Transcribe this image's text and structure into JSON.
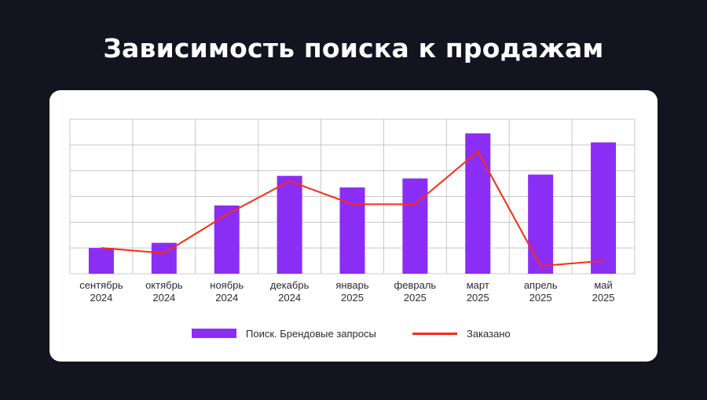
{
  "title": "Зависимость поиска к продажам",
  "colors": {
    "background": "#12151f",
    "card": "#ffffff",
    "bar": "#8a2df5",
    "line": "#ff2a10",
    "grid": "#c8c8c8"
  },
  "chart_data": {
    "type": "bar",
    "categories": [
      [
        "сентябрь",
        "2024"
      ],
      [
        "октябрь",
        "2024"
      ],
      [
        "ноябрь",
        "2024"
      ],
      [
        "декабрь",
        "2024"
      ],
      [
        "январь",
        "2025"
      ],
      [
        "февраль",
        "2025"
      ],
      [
        "март",
        "2025"
      ],
      [
        "апрель",
        "2025"
      ],
      [
        "май",
        "2025"
      ]
    ],
    "series": [
      {
        "name": "Поиск. Брендовые запросы",
        "type": "bar",
        "values": [
          1.0,
          1.2,
          2.65,
          3.8,
          3.35,
          3.7,
          5.45,
          3.85,
          5.1
        ]
      },
      {
        "name": "Заказано",
        "type": "line",
        "values": [
          1.0,
          0.8,
          2.3,
          3.6,
          2.7,
          2.7,
          4.75,
          0.3,
          0.5
        ]
      }
    ],
    "ylim": [
      0,
      6
    ],
    "grid": true,
    "y_tick_labels_shown": false,
    "legend_position": "bottom"
  },
  "legend": {
    "bars_label": "Поиск. Брендовые запросы",
    "line_label": "Заказано"
  }
}
